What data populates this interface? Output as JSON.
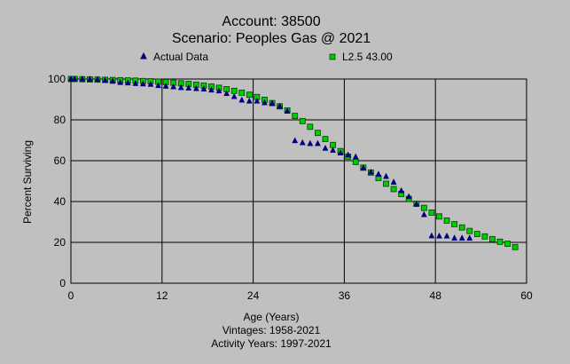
{
  "chart_data": {
    "type": "scatter",
    "title": "Account: 38500",
    "subtitle": "Scenario: Peoples Gas @ 2021",
    "xlabel": "Age (Years)",
    "ylabel": "Percent Surviving",
    "xlim": [
      0,
      60
    ],
    "ylim": [
      0,
      100
    ],
    "x_ticks": [
      0,
      12,
      24,
      36,
      48,
      60
    ],
    "y_ticks": [
      0,
      20,
      40,
      60,
      80,
      100
    ],
    "grid": true,
    "legend_placement": "top",
    "footer_lines": [
      "Vintages: 1958-2021",
      "Activity Years: 1997-2021"
    ],
    "colors": {
      "background": "#c0c0c0",
      "actual": "#000080",
      "curve_fill": "#00cc00",
      "curve_stroke": "#004000",
      "grid": "#000000"
    },
    "series": [
      {
        "name": "Actual Data",
        "marker": "triangle",
        "x": [
          0,
          0.5,
          1.5,
          2.5,
          3.5,
          4.5,
          5.5,
          6.5,
          7.5,
          8.5,
          9.5,
          10.5,
          11.5,
          12.5,
          13.5,
          14.5,
          15.5,
          16.5,
          17.5,
          18.5,
          19.5,
          20.5,
          21.5,
          22.5,
          23.5,
          24.5,
          25.5,
          26.5,
          27.5,
          28.5,
          29.5,
          30.5,
          31.5,
          32.5,
          33.5,
          34.5,
          35.5,
          36.5,
          37.5,
          38.5,
          39.5,
          40.5,
          41.5,
          42.5,
          43.5,
          44.5,
          45.5,
          46.5,
          47.5,
          48.5,
          49.5,
          50.5,
          51.5,
          52.5
        ],
        "y": [
          100,
          100,
          100,
          99.9,
          99.8,
          99.3,
          98.9,
          98.3,
          98.1,
          97.8,
          97.6,
          97.4,
          96.8,
          96.5,
          96.2,
          95.8,
          95.6,
          95.3,
          95.1,
          94.6,
          94.2,
          92.9,
          91.4,
          89.7,
          89.2,
          89.2,
          88.4,
          88.1,
          86.7,
          84.3,
          69.8,
          68.8,
          68.4,
          68.4,
          66.1,
          65.1,
          63.8,
          62.8,
          61.9,
          56.4,
          54.4,
          53.4,
          52.3,
          49.5,
          45.3,
          42.4,
          38.8,
          33.6,
          23.2,
          23.1,
          23.1,
          22.1,
          22.1,
          22.1
        ]
      },
      {
        "name": "L2.5 43.00",
        "marker": "square",
        "x": [
          0,
          0.5,
          1.5,
          2.5,
          3.5,
          4.5,
          5.5,
          6.5,
          7.5,
          8.5,
          9.5,
          10.5,
          11.5,
          12.5,
          13.5,
          14.5,
          15.5,
          16.5,
          17.5,
          18.5,
          19.5,
          20.5,
          21.5,
          22.5,
          23.5,
          24.5,
          25.5,
          26.5,
          27.5,
          28.5,
          29.5,
          30.5,
          31.5,
          32.5,
          33.5,
          34.5,
          35.5,
          36.5,
          37.5,
          38.5,
          39.5,
          40.5,
          41.5,
          42.5,
          43.5,
          44.5,
          45.5,
          46.5,
          47.5,
          48.5,
          49.5,
          50.5,
          51.5,
          52.5,
          53.5,
          54.5,
          55.5,
          56.5,
          57.5,
          58.5
        ],
        "y": [
          100,
          100,
          99.9,
          99.8,
          99.7,
          99.6,
          99.5,
          99.4,
          99.3,
          99.2,
          99.0,
          98.9,
          98.7,
          98.5,
          98.2,
          97.9,
          97.6,
          97.2,
          96.8,
          96.3,
          95.7,
          95.0,
          94.2,
          93.3,
          92.3,
          91.2,
          89.8,
          88.2,
          86.6,
          84.6,
          81.9,
          79.4,
          76.6,
          73.6,
          70.6,
          67.7,
          64.7,
          62.0,
          59.4,
          56.6,
          54.2,
          51.5,
          48.7,
          46.1,
          43.7,
          41.3,
          38.9,
          36.9,
          34.6,
          32.7,
          30.7,
          28.9,
          27.3,
          25.6,
          24.1,
          22.9,
          21.6,
          20.3,
          19.3,
          17.7
        ]
      }
    ]
  }
}
